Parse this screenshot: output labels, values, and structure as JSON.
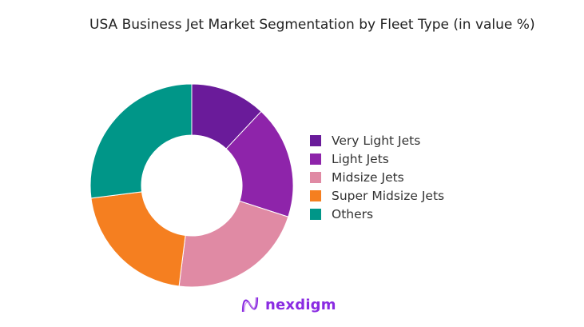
{
  "chart_data": {
    "type": "pie",
    "variant": "donut",
    "title": "USA Business Jet Market Segmentation by Fleet Type (in value %)",
    "categories": [
      "Very Light Jets",
      "Light Jets",
      "Midsize Jets",
      "Super Midsize Jets",
      "Others"
    ],
    "values": [
      12,
      18,
      22,
      21,
      27
    ],
    "unit": "%",
    "colors": [
      "#6a1b9a",
      "#8e24aa",
      "#e08aa4",
      "#f57f20",
      "#009688"
    ],
    "legend": "right"
  },
  "logo": {
    "text": "nexdigm",
    "color": "#8a2be2"
  }
}
